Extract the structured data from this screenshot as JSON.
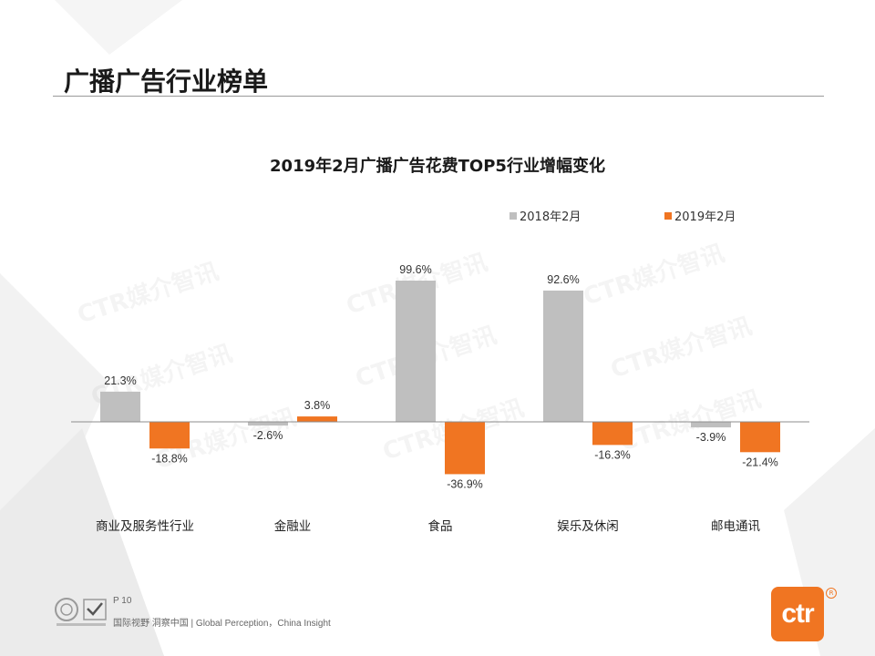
{
  "page": {
    "title": "广播广告行业榜单",
    "page_number": "P 10",
    "footer_tagline": "国际视野 洞察中国 | Global Perception，China Insight",
    "brand_logo_text": "ctr",
    "brand_reg_mark": "R",
    "watermark_text": "CTR媒介智讯"
  },
  "colors": {
    "series_2018": "#bfbfbf",
    "series_2019": "#f07522",
    "axis": "#8c8c8c",
    "accent": "#f07522"
  },
  "chart_data": {
    "type": "bar",
    "title": "2019年2月广播广告花费TOP5行业增幅变化",
    "categories": [
      "商业及服务性行业",
      "金融业",
      "食品",
      "娱乐及休闲",
      "邮电通讯"
    ],
    "series": [
      {
        "name": "2018年2月",
        "values": [
          21.3,
          -2.6,
          99.6,
          92.6,
          -3.9
        ],
        "labels": [
          "21.3%",
          "-2.6%",
          "99.6%",
          "92.6%",
          "-3.9%"
        ]
      },
      {
        "name": "2019年2月",
        "values": [
          -18.8,
          3.8,
          -36.9,
          -16.3,
          -21.4
        ],
        "labels": [
          "-18.8%",
          "3.8%",
          "-36.9%",
          "-16.3%",
          "-21.4%"
        ]
      }
    ],
    "unit": "%",
    "ylim": [
      -40,
      100
    ],
    "grid": false,
    "legend_position": "top-right"
  }
}
